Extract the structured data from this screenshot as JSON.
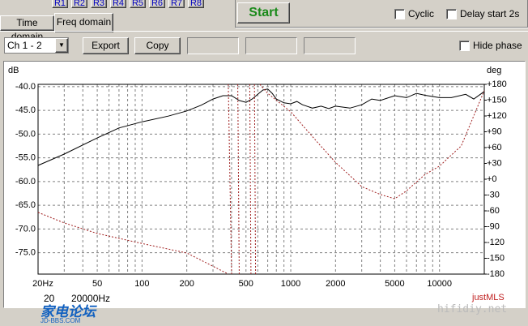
{
  "ui": {
    "range_buttons": [
      "R1",
      "R2",
      "R3",
      "R4",
      "R5",
      "R6",
      "R7",
      "R8"
    ],
    "start": "Start",
    "cyclic": "Cyclic",
    "delay": "Delay start 2s",
    "tabs": [
      "Time domain",
      "Freq domain"
    ],
    "channel": "Ch 1 - 2",
    "export": "Export",
    "copy": "Copy",
    "hide_phase": "Hide phase",
    "range_from": "20",
    "range_to": "20000Hz",
    "brand": "justMLS",
    "watermarks": [
      "家电论坛",
      "JD-BBS.COM",
      "hifidiy.net"
    ]
  },
  "chart_data": {
    "type": "line",
    "ylabel": "dB",
    "y2label": "deg",
    "xlim": [
      20,
      20000
    ],
    "log_x": true,
    "xticks": [
      {
        "value": 20,
        "label": "20Hz"
      },
      50,
      100,
      200,
      500,
      1000,
      2000,
      5000,
      10000
    ],
    "xgrid_minor": [
      30,
      40,
      60,
      70,
      80,
      90,
      300,
      400,
      600,
      700,
      800,
      900,
      3000,
      4000,
      6000,
      7000,
      8000,
      9000
    ],
    "ylim": [
      -79.5,
      -39.5
    ],
    "yticks": [
      {
        "value": -40,
        "label": "-40.0"
      },
      {
        "value": -45,
        "label": "-45.0"
      },
      {
        "value": -50,
        "label": "-50.0"
      },
      {
        "value": -55,
        "label": "-55.0"
      },
      {
        "value": -60,
        "label": "-60.0"
      },
      {
        "value": -65,
        "label": "-65.0"
      },
      {
        "value": -70,
        "label": "-70.0"
      },
      {
        "value": -75,
        "label": "-75.0"
      }
    ],
    "y2lim": [
      -180,
      180
    ],
    "y2ticks": [
      {
        "value": 180,
        "label": "+180"
      },
      {
        "value": 150,
        "label": "+150"
      },
      {
        "value": 120,
        "label": "+120"
      },
      {
        "value": 90,
        "label": "+90"
      },
      {
        "value": 60,
        "label": "+60"
      },
      {
        "value": 30,
        "label": "+30"
      },
      {
        "value": 0,
        "label": "+0"
      },
      -30,
      -60,
      -90,
      -120,
      -150,
      -180
    ],
    "grid": true,
    "series": [
      {
        "color": "#000000",
        "x": [
          20,
          30,
          50,
          70,
          100,
          150,
          200,
          250,
          300,
          350,
          400,
          450,
          500,
          550,
          600,
          650,
          700,
          750,
          800,
          900,
          1000,
          1100,
          1200,
          1400,
          1600,
          1800,
          2000,
          2500,
          3000,
          3500,
          4000,
          5000,
          6000,
          7000,
          8000,
          10000,
          12000,
          15000,
          17000,
          20000
        ],
        "values": [
          -56.6,
          -54.2,
          -50.8,
          -48.7,
          -47.4,
          -46.2,
          -45.1,
          -43.9,
          -42.6,
          -41.9,
          -41.9,
          -42.9,
          -43.3,
          -42.6,
          -41.6,
          -40.7,
          -40.5,
          -41.4,
          -42.6,
          -43.4,
          -43.6,
          -43.1,
          -43.8,
          -44.5,
          -44.1,
          -44.6,
          -44.1,
          -44.5,
          -43.8,
          -42.6,
          -42.9,
          -41.9,
          -42.3,
          -41.4,
          -41.8,
          -42.3,
          -42.3,
          -41.6,
          -42.6,
          -41.0
        ]
      },
      {
        "color": "#a02020",
        "axis": "y2",
        "dashed": true,
        "x": [
          20,
          30,
          50,
          100,
          200,
          300,
          380,
          null,
          380,
          400,
          null,
          440,
          450,
          null,
          530,
          540,
          null,
          570,
          580,
          null,
          620,
          700,
          800,
          1000,
          1500,
          2000,
          3000,
          4000,
          5000,
          6000,
          8000,
          10000,
          14000,
          20000
        ],
        "values": [
          -63,
          -83,
          -103,
          -122,
          -140,
          -165,
          -180,
          null,
          180,
          -180,
          null,
          180,
          -180,
          null,
          180,
          -180,
          null,
          180,
          -180,
          null,
          180,
          163,
          150,
          128,
          71,
          32,
          -14,
          -29,
          -37,
          -22,
          9,
          25,
          63,
          168
        ]
      }
    ]
  }
}
